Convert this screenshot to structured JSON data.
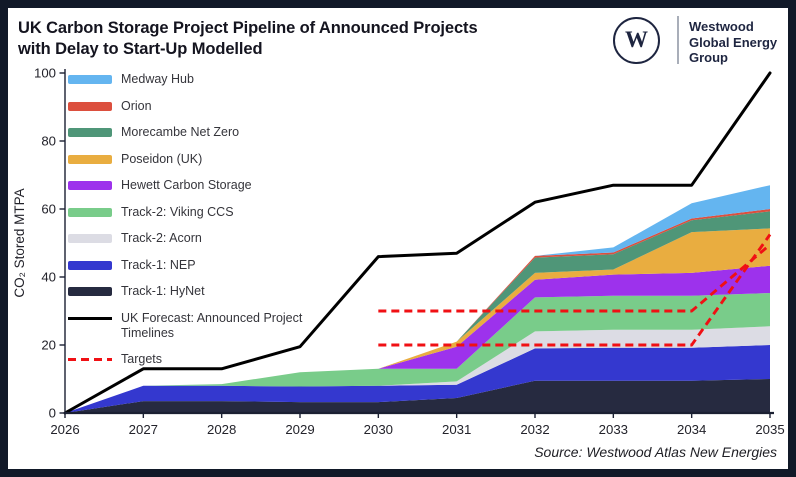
{
  "frame": {
    "border_color": "#111928",
    "card_color": "#ffffff"
  },
  "header": {
    "title_line1": "UK Carbon Storage Project Pipeline of Announced Projects",
    "title_line2": "with Delay to Start-Up Modelled",
    "logo": {
      "monogram": "W",
      "name_lines": [
        "Westwood",
        "Global Energy",
        "Group"
      ],
      "color": "#1e2540"
    }
  },
  "source": "Source: Westwood Atlas New Energies",
  "chart_data": {
    "type": "area",
    "stacked": true,
    "title": "UK Carbon Storage Project Pipeline of Announced Projects with Delay to Start-Up Modelled",
    "xlabel": "",
    "ylabel": "CO₂ Stored MTPA",
    "x": [
      2026,
      2027,
      2028,
      2029,
      2030,
      2031,
      2032,
      2033,
      2034,
      2035
    ],
    "ylim": [
      0,
      100
    ],
    "yticks": [
      0,
      20,
      40,
      60,
      80,
      100
    ],
    "grid": false,
    "legend_position": "upper-left-inside",
    "series": [
      {
        "id": "track1-hynet",
        "name": "Track-1: HyNet",
        "color": "#262a40",
        "values": [
          0,
          3.5,
          3.5,
          3.2,
          3.2,
          4.4,
          9.5,
          9.5,
          9.5,
          10
        ]
      },
      {
        "id": "track1-nep",
        "name": "Track-1: NEP",
        "color": "#3438cf",
        "values": [
          0,
          4.5,
          4.5,
          4.6,
          4.8,
          3.9,
          9.5,
          9.7,
          9.7,
          10
        ]
      },
      {
        "id": "track2-acorn",
        "name": "Track-2: Acorn",
        "color": "#dcdce4",
        "values": [
          0,
          0,
          0,
          0,
          0,
          1.0,
          5.0,
          5.3,
          5.3,
          5.5
        ]
      },
      {
        "id": "track2-viking",
        "name": "Track-2: Viking CCS",
        "color": "#79cc8a",
        "values": [
          0,
          0,
          0.5,
          4.2,
          5.0,
          3.7,
          10,
          10,
          10,
          9.8
        ]
      },
      {
        "id": "hewett",
        "name": "Hewett Carbon Storage",
        "color": "#9d32ec",
        "values": [
          0,
          0,
          0,
          0,
          0,
          6.5,
          5.2,
          6.2,
          6.7,
          8.0
        ]
      },
      {
        "id": "poseidon",
        "name": "Poseidon (UK)",
        "color": "#e9ad40",
        "values": [
          0,
          0,
          0,
          0,
          0,
          1.5,
          2.0,
          1.5,
          12.0,
          11.0
        ]
      },
      {
        "id": "morecambe",
        "name": "Morecambe Net Zero",
        "color": "#4f9678",
        "values": [
          0,
          0,
          0,
          0,
          0,
          0,
          4.5,
          4.5,
          3.5,
          5.0
        ]
      },
      {
        "id": "orion",
        "name": "Orion",
        "color": "#dc4f3e",
        "values": [
          0,
          0,
          0,
          0,
          0,
          0,
          0.5,
          0.5,
          0.5,
          0.7
        ]
      },
      {
        "id": "medway",
        "name": "Medway Hub",
        "color": "#64b5f0",
        "values": [
          0,
          0,
          0,
          0,
          0,
          0,
          0,
          1.5,
          4.5,
          7.0
        ]
      }
    ],
    "lines": [
      {
        "id": "uk-forecast",
        "name": "UK Forecast: Announced Project Timelines",
        "color": "#000000",
        "style": "solid",
        "x": [
          2026,
          2027,
          2028,
          2029,
          2030,
          2031,
          2032,
          2033,
          2034,
          2035
        ],
        "values": [
          0,
          13,
          13,
          19.5,
          46,
          47,
          62,
          67,
          67,
          100
        ]
      },
      {
        "id": "target-upper",
        "name": "Targets",
        "color": "#f01014",
        "style": "dashed",
        "x": [
          2030,
          2034,
          2035
        ],
        "values": [
          30,
          30,
          49.5
        ]
      },
      {
        "id": "target-lower",
        "name": "Targets",
        "color": "#f01014",
        "style": "dashed",
        "x": [
          2030,
          2034,
          2035
        ],
        "values": [
          20,
          20,
          52.5
        ]
      }
    ],
    "legend": [
      {
        "label": "Medway Hub",
        "color": "#64b5f0",
        "swatch": "area"
      },
      {
        "label": "Orion",
        "color": "#dc4f3e",
        "swatch": "area"
      },
      {
        "label": "Morecambe Net Zero",
        "color": "#4f9678",
        "swatch": "area"
      },
      {
        "label": "Poseidon (UK)",
        "color": "#e9ad40",
        "swatch": "area"
      },
      {
        "label": "Hewett Carbon Storage",
        "color": "#9d32ec",
        "swatch": "area"
      },
      {
        "label": "Track-2: Viking CCS",
        "color": "#79cc8a",
        "swatch": "area"
      },
      {
        "label": "Track-2: Acorn",
        "color": "#dcdce4",
        "swatch": "area"
      },
      {
        "label": "Track-1: NEP",
        "color": "#3438cf",
        "swatch": "area"
      },
      {
        "label": "Track-1: HyNet",
        "color": "#262a40",
        "swatch": "area"
      },
      {
        "label": "UK Forecast: Announced Project Timelines",
        "color": "#000000",
        "swatch": "solid-line",
        "wrap": true
      },
      {
        "label": "Targets",
        "color": "#f01014",
        "swatch": "dashed-line"
      }
    ]
  },
  "axis": {
    "color": "#1b2032",
    "tick_text_color": "#23232b"
  }
}
